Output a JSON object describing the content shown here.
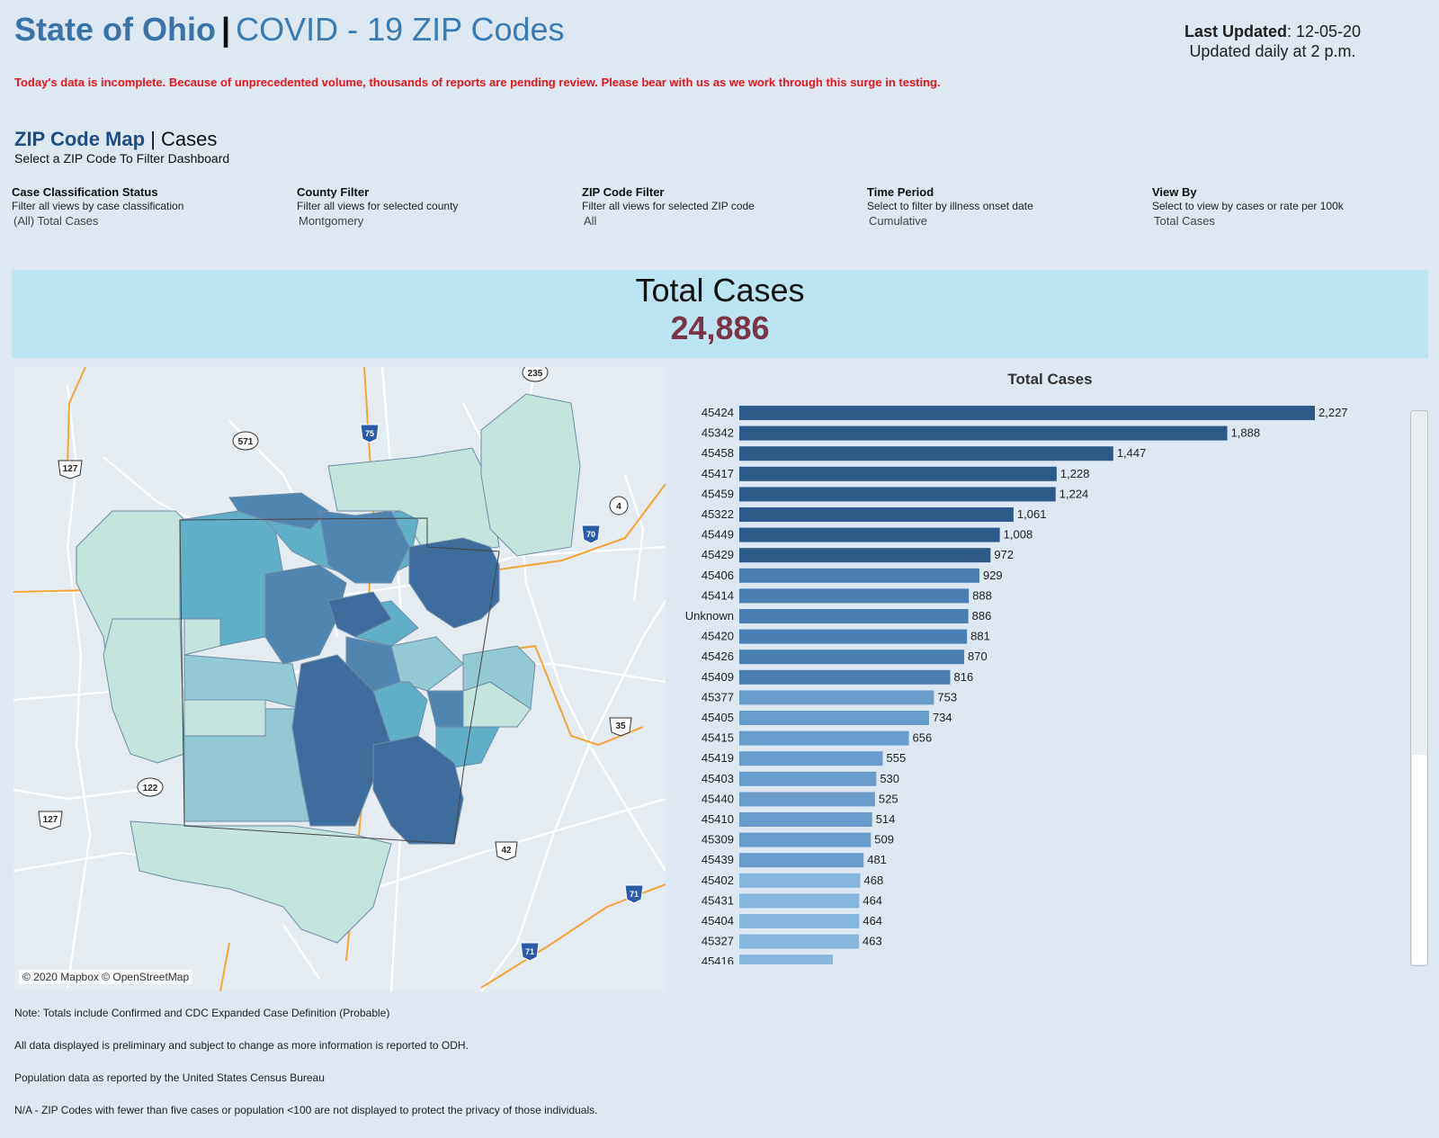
{
  "header": {
    "title_main": "State of Ohio",
    "title_sep": "|",
    "title_sub": "COVID - 19 ZIP Codes",
    "last_updated_label": "Last Updated",
    "last_updated_value": ": 12-05-20",
    "update_schedule": "Updated daily at 2 p.m."
  },
  "warning": "Today's data is incomplete. Because of unprecedented volume, thousands of reports are pending review. Please bear with us as we work through this surge in testing.",
  "section": {
    "title": "ZIP Code Map",
    "sep": "|",
    "subtitle": "Cases",
    "instruction": "Select a ZIP Code To Filter Dashboard"
  },
  "filters": [
    {
      "heading": "Case Classification Status",
      "description": "Filter all views by case classification",
      "value": "(All) Total Cases"
    },
    {
      "heading": "County Filter",
      "description": "Filter all views for selected county",
      "value": "Montgomery"
    },
    {
      "heading": "ZIP Code Filter",
      "description": "Filter all views for selected ZIP code",
      "value": "All"
    },
    {
      "heading": "Time Period",
      "description": "Select to filter by illness onset date",
      "value": "Cumulative"
    },
    {
      "heading": "View By",
      "description": "Select to view by cases or rate per 100k",
      "value": "Total Cases"
    }
  ],
  "summary": {
    "label": "Total Cases",
    "value": "24,886"
  },
  "map": {
    "attribution": "© 2020 Mapbox © OpenStreetMap",
    "road_labels": [
      "235",
      "571",
      "75",
      "127",
      "4",
      "70",
      "35",
      "42",
      "122",
      "71",
      "127",
      "35"
    ],
    "colors": {
      "low": "#c5e4de",
      "mid_low": "#92c9d3",
      "mid": "#5fb0c7",
      "mid_high": "#4f86b1",
      "high": "#3e6c9c"
    }
  },
  "chart_data": {
    "type": "bar",
    "orientation": "horizontal",
    "title": "Total Cases",
    "categories": [
      "45424",
      "45342",
      "45458",
      "45417",
      "45459",
      "45322",
      "45449",
      "45429",
      "45406",
      "45414",
      "Unknown",
      "45420",
      "45426",
      "45409",
      "45377",
      "45405",
      "45415",
      "45419",
      "45403",
      "45440",
      "45410",
      "45309",
      "45439",
      "45402",
      "45431",
      "45404",
      "45327"
    ],
    "values": [
      2227,
      1888,
      1447,
      1228,
      1224,
      1061,
      1008,
      972,
      929,
      888,
      886,
      881,
      870,
      816,
      753,
      734,
      656,
      555,
      530,
      525,
      514,
      509,
      481,
      468,
      464,
      464,
      463
    ],
    "value_labels": [
      "2,227",
      "1,888",
      "1,447",
      "1,228",
      "1,224",
      "1,061",
      "1,008",
      "972",
      "929",
      "888",
      "886",
      "881",
      "870",
      "816",
      "753",
      "734",
      "656",
      "555",
      "530",
      "525",
      "514",
      "509",
      "481",
      "468",
      "464",
      "464",
      "463"
    ],
    "partial_row_label": "45416",
    "colors": {
      "dark": "#2e5a8a",
      "mid": "#4a7fb2",
      "light": "#6a9ccb",
      "lighter": "#86b6db"
    },
    "xlim": [
      0,
      2227
    ],
    "scrollable": true
  },
  "notes": [
    "Note: Totals include Confirmed and CDC Expanded Case Definition (Probable)",
    "All data displayed is preliminary and subject to change as more information is reported to ODH.",
    "Population data as reported by the United States Census Bureau",
    "N/A - ZIP Codes with fewer than five cases or population <100 are not displayed to protect the privacy of those individuals."
  ]
}
